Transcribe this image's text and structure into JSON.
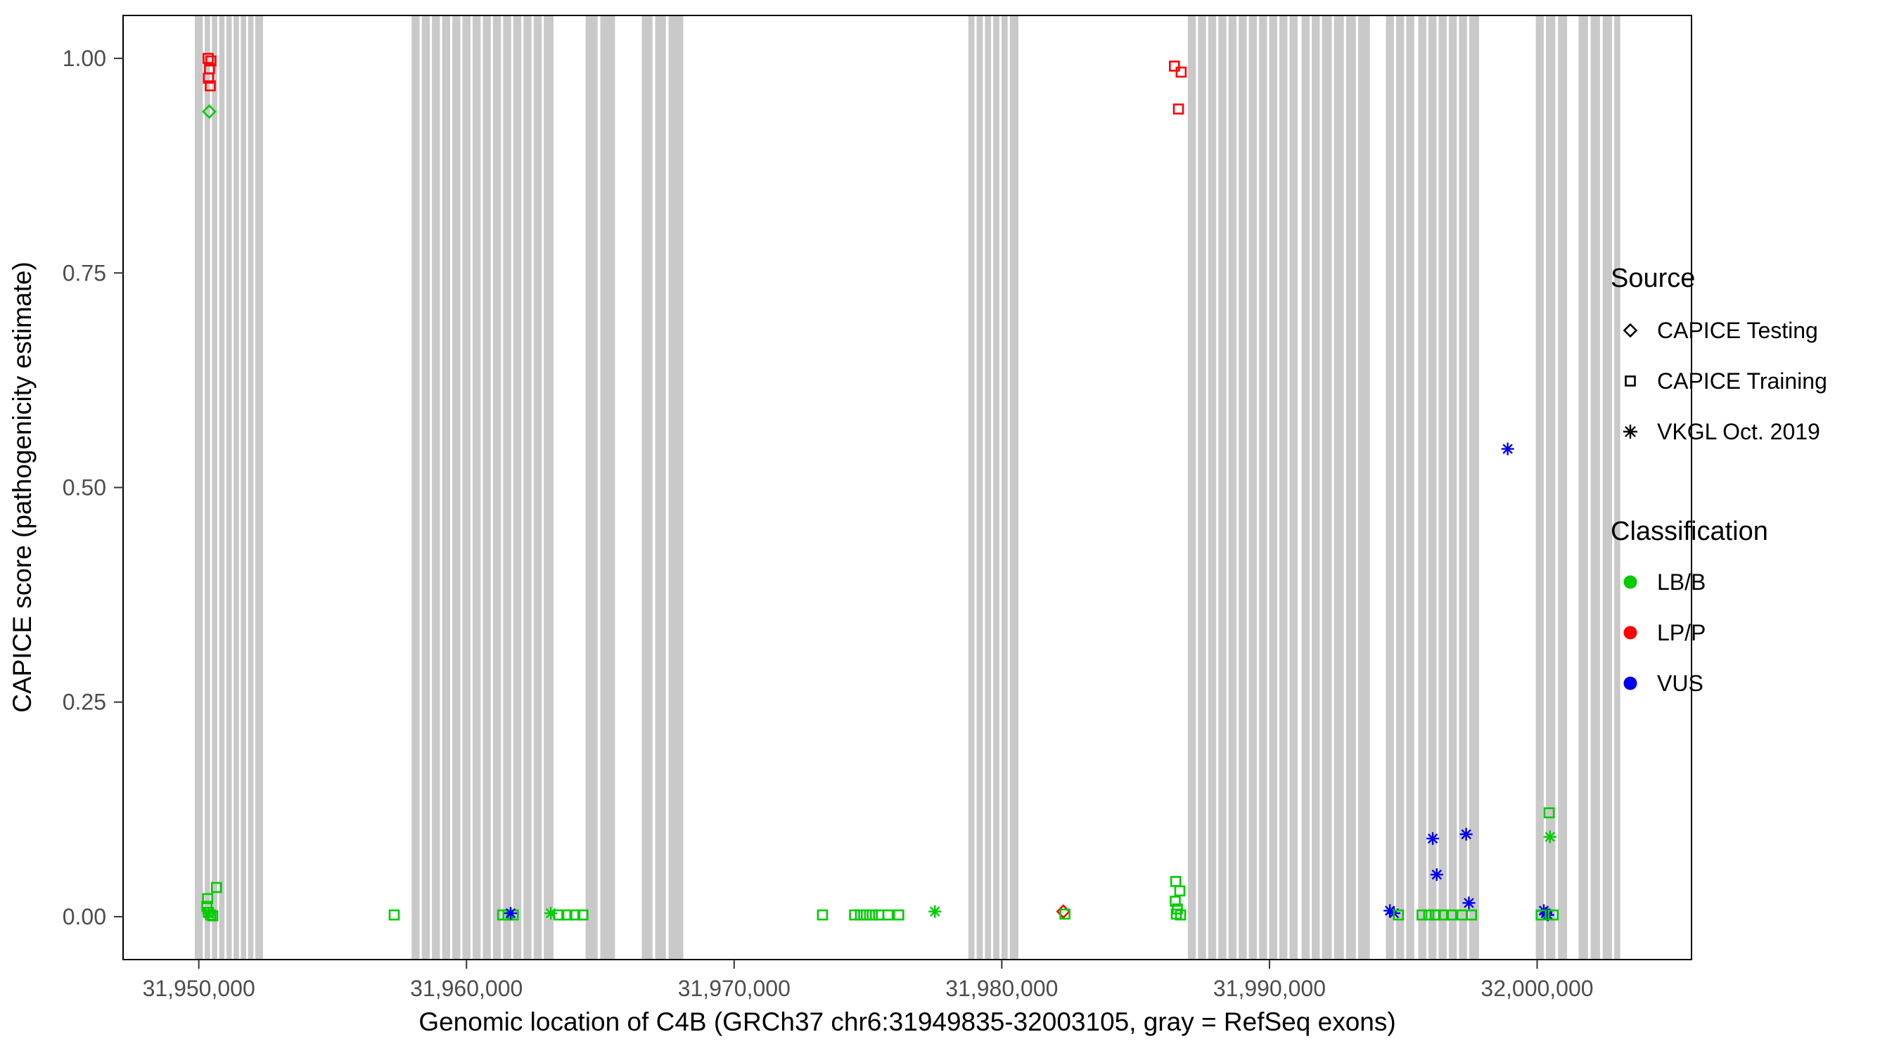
{
  "chart_data": {
    "type": "scatter",
    "title": "",
    "xlabel": "Genomic location of C4B (GRCh37 chr6:31949835-32003105, gray = RefSeq exons)",
    "ylabel": "CAPICE score (pathogenicity estimate)",
    "xlim": [
      31947171,
      32005768
    ],
    "ylim": [
      -0.05,
      1.05
    ],
    "grid": false,
    "legend_position": "right",
    "x_ticks": [
      {
        "value": 31950000,
        "label": "31,950,000"
      },
      {
        "value": 31960000,
        "label": "31,960,000"
      },
      {
        "value": 31970000,
        "label": "31,970,000"
      },
      {
        "value": 31980000,
        "label": "31,980,000"
      },
      {
        "value": 31990000,
        "label": "31,990,000"
      },
      {
        "value": 32000000,
        "label": "32,000,000"
      }
    ],
    "y_ticks": [
      {
        "value": 0.0,
        "label": "0.00"
      },
      {
        "value": 0.25,
        "label": "0.25"
      },
      {
        "value": 0.5,
        "label": "0.50"
      },
      {
        "value": 0.75,
        "label": "0.75"
      },
      {
        "value": 1.0,
        "label": "1.00"
      }
    ],
    "exon_color": "#C9C9C9",
    "class_colors": {
      "LB/B": "#00CC00",
      "LP/P": "#FF0000",
      "VUS": "#0000EE"
    },
    "source_shapes": {
      "CAPICE Testing": "diamond",
      "CAPICE Training": "square",
      "VKGL Oct. 2019": "asterisk"
    },
    "exons": [
      [
        31949850,
        31950150
      ],
      [
        31950220,
        31950420
      ],
      [
        31950490,
        31950690
      ],
      [
        31950760,
        31950960
      ],
      [
        31951030,
        31951230
      ],
      [
        31951300,
        31951500
      ],
      [
        31951570,
        31951770
      ],
      [
        31951840,
        31952040
      ],
      [
        31952110,
        31952400
      ],
      [
        31957950,
        31958250
      ],
      [
        31958330,
        31958630
      ],
      [
        31958710,
        31959010
      ],
      [
        31959090,
        31959390
      ],
      [
        31959470,
        31959770
      ],
      [
        31959850,
        31960150
      ],
      [
        31960230,
        31960530
      ],
      [
        31960610,
        31960910
      ],
      [
        31960990,
        31961290
      ],
      [
        31961370,
        31961670
      ],
      [
        31961750,
        31962050
      ],
      [
        31962130,
        31962430
      ],
      [
        31962510,
        31962810
      ],
      [
        31962890,
        31963250
      ],
      [
        31964450,
        31964900
      ],
      [
        31965000,
        31965550
      ],
      [
        31966550,
        31966950
      ],
      [
        31967050,
        31967450
      ],
      [
        31967550,
        31968100
      ],
      [
        31978750,
        31978980
      ],
      [
        31979060,
        31979290
      ],
      [
        31979370,
        31979600
      ],
      [
        31979680,
        31979910
      ],
      [
        31979990,
        31980220
      ],
      [
        31980300,
        31980620
      ],
      [
        31986950,
        31987250
      ],
      [
        31987330,
        31987630
      ],
      [
        31987710,
        31988010
      ],
      [
        31988090,
        31988390
      ],
      [
        31988470,
        31988770
      ],
      [
        31988850,
        31989150
      ],
      [
        31989230,
        31989530
      ],
      [
        31989610,
        31989910
      ],
      [
        31989990,
        31990290
      ],
      [
        31990370,
        31990670
      ],
      [
        31990750,
        31991050
      ],
      [
        31991200,
        31991500
      ],
      [
        31991580,
        31991880
      ],
      [
        31991960,
        31992330
      ],
      [
        31992410,
        31992780
      ],
      [
        31992860,
        31993230
      ],
      [
        31993310,
        31993750
      ],
      [
        31994350,
        31994650
      ],
      [
        31994730,
        31995030
      ],
      [
        31995110,
        31995410
      ],
      [
        31995560,
        31995860
      ],
      [
        31995940,
        31996240
      ],
      [
        31996320,
        31996620
      ],
      [
        31996700,
        31997000
      ],
      [
        31997080,
        31997380
      ],
      [
        31997460,
        31997830
      ],
      [
        31999950,
        32000250
      ],
      [
        32000330,
        32000680
      ],
      [
        32000780,
        32001120
      ],
      [
        32001550,
        32001900
      ],
      [
        32002000,
        32002350
      ],
      [
        32002450,
        32002800
      ],
      [
        32002880,
        32003105
      ]
    ],
    "points": [
      [
        31950350,
        1.0,
        "square",
        "LP/P"
      ],
      [
        31950450,
        0.997,
        "square",
        "LP/P"
      ],
      [
        31950400,
        0.988,
        "square",
        "LP/P"
      ],
      [
        31950360,
        0.977,
        "square",
        "LP/P"
      ],
      [
        31950430,
        0.968,
        "square",
        "LP/P"
      ],
      [
        31950390,
        0.938,
        "diamond",
        "LB/B"
      ],
      [
        31950660,
        0.034,
        "square",
        "LB/B"
      ],
      [
        31950330,
        0.021,
        "square",
        "LB/B"
      ],
      [
        31950300,
        0.012,
        "square",
        "LB/B"
      ],
      [
        31950360,
        0.005,
        "square",
        "LB/B"
      ],
      [
        31950440,
        0.002,
        "square",
        "LB/B"
      ],
      [
        31950520,
        0.001,
        "square",
        "LB/B"
      ],
      [
        31950370,
        0.004,
        "asterisk",
        "LB/B"
      ],
      [
        31957300,
        0.002,
        "square",
        "LB/B"
      ],
      [
        31961350,
        0.002,
        "square",
        "LB/B"
      ],
      [
        31961550,
        0.002,
        "square",
        "LB/B"
      ],
      [
        31961750,
        0.002,
        "square",
        "LB/B"
      ],
      [
        31961650,
        0.004,
        "asterisk",
        "VUS"
      ],
      [
        31963150,
        0.004,
        "asterisk",
        "LB/B"
      ],
      [
        31963450,
        0.002,
        "square",
        "LB/B"
      ],
      [
        31963750,
        0.002,
        "square",
        "LB/B"
      ],
      [
        31964050,
        0.002,
        "square",
        "LB/B"
      ],
      [
        31964350,
        0.002,
        "square",
        "LB/B"
      ],
      [
        31973300,
        0.002,
        "square",
        "LB/B"
      ],
      [
        31974500,
        0.002,
        "square",
        "LB/B"
      ],
      [
        31974720,
        0.002,
        "square",
        "LB/B"
      ],
      [
        31974940,
        0.002,
        "square",
        "LB/B"
      ],
      [
        31975160,
        0.002,
        "square",
        "LB/B"
      ],
      [
        31975400,
        0.002,
        "square",
        "LB/B"
      ],
      [
        31975750,
        0.002,
        "square",
        "LB/B"
      ],
      [
        31976150,
        0.002,
        "square",
        "LB/B"
      ],
      [
        31977500,
        0.006,
        "asterisk",
        "LB/B"
      ],
      [
        31982300,
        0.006,
        "diamond",
        "LP/P"
      ],
      [
        31982360,
        0.003,
        "square",
        "LB/B"
      ],
      [
        31986450,
        0.991,
        "square",
        "LP/P"
      ],
      [
        31986700,
        0.984,
        "square",
        "LP/P"
      ],
      [
        31986600,
        0.941,
        "square",
        "LP/P"
      ],
      [
        31986500,
        0.041,
        "square",
        "LB/B"
      ],
      [
        31986650,
        0.03,
        "square",
        "LB/B"
      ],
      [
        31986480,
        0.018,
        "square",
        "LB/B"
      ],
      [
        31986560,
        0.009,
        "square",
        "LB/B"
      ],
      [
        31986520,
        0.003,
        "square",
        "LB/B"
      ],
      [
        31986680,
        0.002,
        "square",
        "LB/B"
      ],
      [
        31994500,
        0.007,
        "asterisk",
        "VUS"
      ],
      [
        31994650,
        0.004,
        "asterisk",
        "VUS"
      ],
      [
        31994820,
        0.002,
        "square",
        "LB/B"
      ],
      [
        31995700,
        0.002,
        "square",
        "LB/B"
      ],
      [
        31995950,
        0.002,
        "square",
        "LB/B"
      ],
      [
        31996200,
        0.002,
        "square",
        "LB/B"
      ],
      [
        31996500,
        0.002,
        "square",
        "LB/B"
      ],
      [
        31996800,
        0.002,
        "square",
        "LB/B"
      ],
      [
        31996100,
        0.091,
        "asterisk",
        "VUS"
      ],
      [
        31996250,
        0.049,
        "asterisk",
        "VUS"
      ],
      [
        31997350,
        0.096,
        "asterisk",
        "VUS"
      ],
      [
        31997450,
        0.016,
        "asterisk",
        "VUS"
      ],
      [
        31997200,
        0.002,
        "square",
        "LB/B"
      ],
      [
        31997550,
        0.002,
        "square",
        "LB/B"
      ],
      [
        31998900,
        0.545,
        "asterisk",
        "VUS"
      ],
      [
        32000450,
        0.121,
        "square",
        "LB/B"
      ],
      [
        32000480,
        0.093,
        "asterisk",
        "LB/B"
      ],
      [
        32000250,
        0.007,
        "asterisk",
        "VUS"
      ],
      [
        32000330,
        0.004,
        "asterisk",
        "VUS"
      ],
      [
        32000400,
        0.002,
        "asterisk",
        "VUS"
      ],
      [
        32000150,
        0.002,
        "square",
        "LB/B"
      ],
      [
        32000600,
        0.002,
        "square",
        "LB/B"
      ]
    ],
    "legend": {
      "source": {
        "title": "Source",
        "items": [
          {
            "label": "CAPICE Testing",
            "shape": "diamond"
          },
          {
            "label": "CAPICE Training",
            "shape": "square"
          },
          {
            "label": "VKGL Oct. 2019",
            "shape": "asterisk"
          }
        ]
      },
      "classification": {
        "title": "Classification",
        "items": [
          {
            "label": "LB/B",
            "color": "#00CC00"
          },
          {
            "label": "LP/P",
            "color": "#FF0000"
          },
          {
            "label": "VUS",
            "color": "#0000EE"
          }
        ]
      }
    }
  }
}
